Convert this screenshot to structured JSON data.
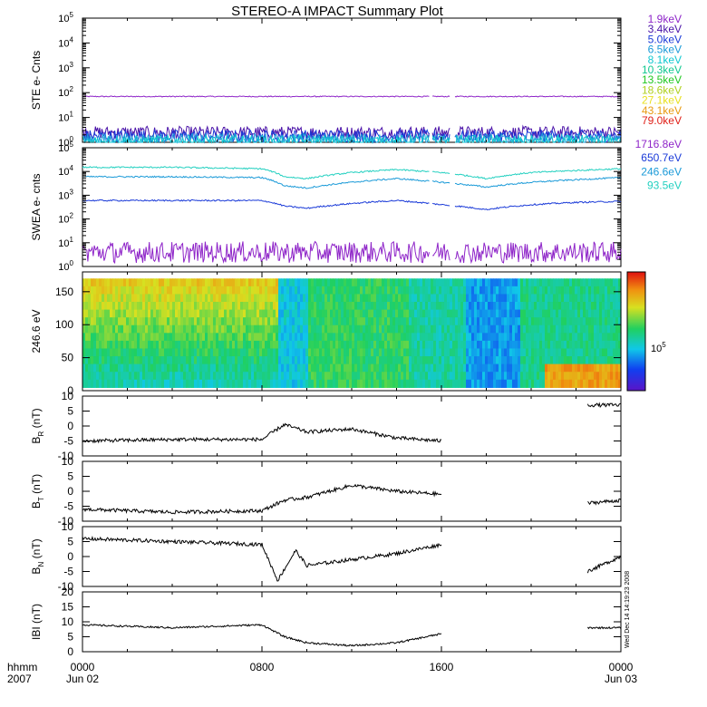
{
  "title": "STEREO-A IMPACT Summary Plot",
  "x_axis": {
    "corner_label_1": "hhmm",
    "corner_label_2": "2007",
    "ticks": [
      {
        "hour": 0,
        "label": "0000",
        "sub": "Jun 02"
      },
      {
        "hour": 8,
        "label": "0800",
        "sub": ""
      },
      {
        "hour": 16,
        "label": "1600",
        "sub": ""
      },
      {
        "hour": 24,
        "label": "0000",
        "sub": "Jun 03"
      }
    ],
    "range_hours": [
      0,
      24
    ]
  },
  "side_stamp": "Wed Dec 14 14:19:23 2008",
  "chart_data": [
    {
      "id": "ste",
      "type": "line",
      "ylabel": "STE e- Cnts",
      "yscale": "log",
      "ylim": [
        1,
        100000
      ],
      "ytick_exponents": [
        0,
        1,
        2,
        3,
        4,
        5
      ],
      "ytick_base": "10",
      "gaps_hours": [
        [
          15.5,
          15.6
        ],
        [
          16.4,
          16.6
        ]
      ],
      "legend": [
        {
          "label": "1.9keV",
          "color": "#8e24c8"
        },
        {
          "label": "3.4keV",
          "color": "#4a12a8"
        },
        {
          "label": "5.0keV",
          "color": "#1a3ad8"
        },
        {
          "label": "6.5keV",
          "color": "#1a9ad8"
        },
        {
          "label": "8.1keV",
          "color": "#12c8d0"
        },
        {
          "label": "10.3keV",
          "color": "#12c890"
        },
        {
          "label": "13.5keV",
          "color": "#22c822"
        },
        {
          "label": "18.6keV",
          "color": "#b0d020"
        },
        {
          "label": "27.1keV",
          "color": "#e8e020"
        },
        {
          "label": "43.1keV",
          "color": "#e89a10"
        },
        {
          "label": "79.0keV",
          "color": "#e02018"
        }
      ],
      "series": [
        {
          "label": "1.9keV",
          "level": 70
        },
        {
          "label": "3.4keV",
          "level": 2.5
        },
        {
          "label": "5.0keV",
          "level": 1.8
        },
        {
          "label": "6.5keV",
          "level": 1.3
        },
        {
          "label": "8.1keV",
          "level": 1.1
        }
      ]
    },
    {
      "id": "swea",
      "type": "line",
      "ylabel": "SWEA e- cnts",
      "yscale": "log",
      "ylim": [
        1,
        100000
      ],
      "ytick_exponents": [
        0,
        1,
        2,
        3,
        4,
        5
      ],
      "ytick_base": "10",
      "gaps_hours": [
        [
          15.5,
          15.6
        ],
        [
          16.4,
          16.6
        ]
      ],
      "legend": [
        {
          "label": "1716.8eV",
          "color": "#8e24c8"
        },
        {
          "label": "650.7eV",
          "color": "#1a3ad8"
        },
        {
          "label": "246.6eV",
          "color": "#1a9ad8"
        },
        {
          "label": "93.5eV",
          "color": "#22d0c0"
        }
      ],
      "series": [
        {
          "label": "93.5eV",
          "points": [
            [
              0,
              15000
            ],
            [
              4,
              15000
            ],
            [
              8,
              13000
            ],
            [
              9,
              6000
            ],
            [
              10,
              5000
            ],
            [
              12,
              9000
            ],
            [
              14,
              12000
            ],
            [
              16,
              9000
            ],
            [
              18,
              5000
            ],
            [
              20,
              9000
            ],
            [
              22,
              11000
            ],
            [
              24,
              13000
            ]
          ]
        },
        {
          "label": "246.6eV",
          "points": [
            [
              0,
              6000
            ],
            [
              4,
              6000
            ],
            [
              8,
              5500
            ],
            [
              9,
              2500
            ],
            [
              10,
              2000
            ],
            [
              12,
              3500
            ],
            [
              14,
              5000
            ],
            [
              16,
              3500
            ],
            [
              18,
              2200
            ],
            [
              20,
              3500
            ],
            [
              22,
              4500
            ],
            [
              24,
              5500
            ]
          ]
        },
        {
          "label": "650.7eV",
          "points": [
            [
              0,
              600
            ],
            [
              4,
              600
            ],
            [
              8,
              600
            ],
            [
              9,
              350
            ],
            [
              10,
              280
            ],
            [
              12,
              450
            ],
            [
              14,
              600
            ],
            [
              16,
              400
            ],
            [
              18,
              250
            ],
            [
              20,
              400
            ],
            [
              22,
              500
            ],
            [
              24,
              550
            ]
          ]
        },
        {
          "label": "1716.8eV",
          "points": [
            [
              0,
              4
            ],
            [
              24,
              4
            ]
          ]
        }
      ]
    },
    {
      "id": "pad",
      "type": "heatmap",
      "ylabel": "246.6 eV",
      "ylim": [
        0,
        180
      ],
      "yticks": [
        0,
        50,
        100,
        150
      ],
      "colorbar_label": "10",
      "colorbar_exponent": "5"
    },
    {
      "id": "br",
      "type": "line",
      "ylabel_main": "B",
      "ylabel_sub": "R",
      "ylabel_unit": " (nT)",
      "ylim": [
        -10,
        10
      ],
      "yticks": [
        -10,
        -5,
        0,
        5,
        10
      ],
      "points": [
        [
          0,
          -5
        ],
        [
          4,
          -4.5
        ],
        [
          8,
          -4.5
        ],
        [
          9,
          0.5
        ],
        [
          10,
          -2
        ],
        [
          12,
          -1
        ],
        [
          14,
          -4
        ],
        [
          16,
          -5
        ],
        [
          22.5,
          7
        ],
        [
          24,
          7
        ]
      ],
      "gaps_hours": [
        [
          16,
          22.5
        ]
      ]
    },
    {
      "id": "bt",
      "type": "line",
      "ylabel_main": "B",
      "ylabel_sub": "T",
      "ylabel_unit": " (nT)",
      "ylim": [
        -10,
        10
      ],
      "yticks": [
        -10,
        -5,
        0,
        5,
        10
      ],
      "points": [
        [
          0,
          -6
        ],
        [
          4,
          -7
        ],
        [
          8,
          -6.5
        ],
        [
          9,
          -3
        ],
        [
          10,
          -2
        ],
        [
          12,
          2
        ],
        [
          14,
          0
        ],
        [
          16,
          -1
        ],
        [
          22.5,
          -4
        ],
        [
          24,
          -3
        ]
      ],
      "gaps_hours": [
        [
          16,
          22.5
        ]
      ]
    },
    {
      "id": "bn",
      "type": "line",
      "ylabel_main": "B",
      "ylabel_sub": "N",
      "ylabel_unit": " (nT)",
      "ylim": [
        -10,
        10
      ],
      "yticks": [
        -10,
        -5,
        0,
        5,
        10
      ],
      "points": [
        [
          0,
          6
        ],
        [
          4,
          5
        ],
        [
          8,
          4
        ],
        [
          8.7,
          -8
        ],
        [
          9.5,
          2
        ],
        [
          10,
          -3
        ],
        [
          12,
          -1
        ],
        [
          14,
          1
        ],
        [
          16,
          4
        ],
        [
          22.5,
          -5
        ],
        [
          24,
          0
        ]
      ],
      "gaps_hours": [
        [
          16,
          22.5
        ]
      ]
    },
    {
      "id": "bmag",
      "type": "line",
      "ylabel": "IBI (nT)",
      "ylim": [
        0,
        20
      ],
      "yticks": [
        0,
        5,
        10,
        15,
        20
      ],
      "points": [
        [
          0,
          9
        ],
        [
          4,
          8
        ],
        [
          8,
          9
        ],
        [
          9,
          5
        ],
        [
          10,
          3
        ],
        [
          12,
          2
        ],
        [
          14,
          3
        ],
        [
          16,
          6
        ],
        [
          22.5,
          8
        ],
        [
          24,
          8
        ]
      ],
      "gaps_hours": [
        [
          16,
          22.5
        ]
      ]
    }
  ]
}
